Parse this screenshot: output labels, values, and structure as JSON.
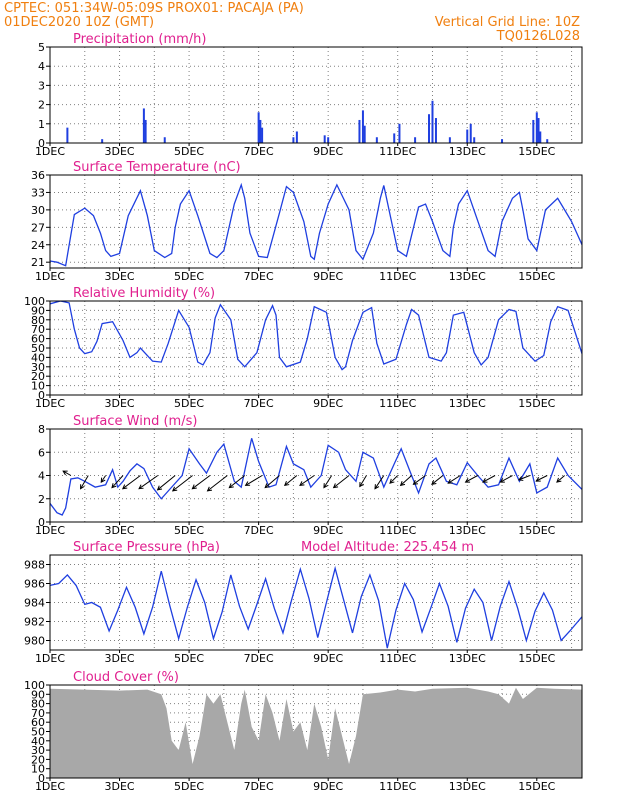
{
  "header": {
    "line1": "CPTEC:   051:34W-05:09S   PROX01: PACAJA (PA)",
    "line2": "01DEC2020 10Z (GMT)",
    "grid_note": "Vertical Grid Line: 10Z",
    "code": "TQ0126L028"
  },
  "colors": {
    "header": "#f07f0f",
    "title": "#e0208f",
    "series": "#1f3fe0",
    "cloud": "#a8a8a8",
    "arrow": "#000000"
  },
  "x_axis": {
    "labels": [
      "1DEC",
      "3DEC",
      "5DEC",
      "7DEC",
      "9DEC",
      "11DEC",
      "13DEC",
      "15DEC"
    ],
    "label_days": [
      1,
      3,
      5,
      7,
      9,
      11,
      13,
      15
    ],
    "range_days": [
      1,
      16.3
    ],
    "grid_days": [
      2,
      3,
      4,
      5,
      6,
      7,
      8,
      9,
      10,
      11,
      12,
      13,
      14,
      15,
      16
    ]
  },
  "chart_data": [
    {
      "id": "precip",
      "type": "bar",
      "title": "Precipitation (mm/h)",
      "ylim": [
        0,
        5
      ],
      "yticks": [
        "0",
        "1",
        "2",
        "3",
        "4",
        "5"
      ],
      "x": [
        1.5,
        2.5,
        3.7,
        3.75,
        4.3,
        7.0,
        7.05,
        7.1,
        8.0,
        8.1,
        8.9,
        9.0,
        9.9,
        10.0,
        10.05,
        10.4,
        10.9,
        11.05,
        11.5,
        11.9,
        12.0,
        12.1,
        12.5,
        13.0,
        13.1,
        13.2,
        14.0,
        14.9,
        15.0,
        15.05,
        15.1,
        15.3
      ],
      "values": [
        0.8,
        0.2,
        1.8,
        1.2,
        0.3,
        1.6,
        1.2,
        0.8,
        0.3,
        0.6,
        0.4,
        0.3,
        1.2,
        1.7,
        0.9,
        0.3,
        0.5,
        1.0,
        0.3,
        1.5,
        2.2,
        1.3,
        0.3,
        0.7,
        1.0,
        0.3,
        0.2,
        1.2,
        1.6,
        1.3,
        0.6,
        0.2
      ]
    },
    {
      "id": "temp",
      "type": "line",
      "title": "Surface Temperature (nC)",
      "ylim": [
        20,
        36
      ],
      "yticks": [
        "21",
        "24",
        "27",
        "30",
        "33",
        "36"
      ],
      "x": [
        1,
        1.2,
        1.45,
        1.7,
        2.0,
        2.25,
        2.45,
        2.6,
        2.75,
        3.0,
        3.25,
        3.6,
        3.8,
        4.0,
        4.3,
        4.5,
        4.6,
        4.75,
        5.0,
        5.25,
        5.6,
        5.8,
        6.0,
        6.3,
        6.5,
        6.6,
        6.75,
        7.0,
        7.25,
        7.6,
        7.8,
        8.0,
        8.3,
        8.5,
        8.6,
        8.75,
        9.0,
        9.25,
        9.6,
        9.8,
        10.0,
        10.3,
        10.5,
        10.6,
        10.75,
        11.0,
        11.25,
        11.6,
        11.8,
        12.0,
        12.3,
        12.5,
        12.6,
        12.75,
        13.0,
        13.25,
        13.6,
        13.8,
        14.0,
        14.3,
        14.5,
        14.6,
        14.75,
        15.0,
        15.25,
        15.6,
        15.8,
        16.0,
        16.3
      ],
      "values": [
        21.2,
        21.0,
        20.4,
        29.2,
        30.3,
        29.0,
        26.0,
        23.0,
        22.0,
        22.5,
        29.0,
        33.3,
        29.0,
        23.0,
        21.8,
        22.5,
        27.0,
        31.0,
        33.3,
        29.0,
        22.5,
        21.8,
        23.0,
        31.0,
        34.3,
        32.0,
        26.0,
        22.0,
        21.8,
        29.5,
        34.0,
        33.0,
        28.0,
        22.0,
        21.5,
        26.0,
        31.0,
        34.3,
        30.0,
        23.0,
        21.5,
        26.0,
        32.0,
        34.2,
        30.0,
        23.0,
        22.0,
        30.5,
        31.0,
        28.0,
        23.0,
        22.0,
        27.0,
        31.0,
        33.3,
        29.0,
        23.0,
        22.0,
        28.0,
        32.0,
        33.0,
        30.0,
        25.0,
        23.0,
        30.0,
        32.0,
        30.0,
        28.0,
        24.0
      ]
    },
    {
      "id": "rh",
      "type": "line",
      "title": "Relative Humidity (%)",
      "ylim": [
        0,
        100
      ],
      "yticks": [
        "0",
        "10",
        "20",
        "30",
        "40",
        "50",
        "60",
        "70",
        "80",
        "90",
        "100"
      ],
      "x": [
        1.0,
        1.3,
        1.55,
        1.7,
        1.85,
        2.0,
        2.2,
        2.35,
        2.5,
        2.8,
        3.1,
        3.3,
        3.5,
        3.6,
        3.75,
        3.95,
        4.2,
        4.4,
        4.7,
        5.0,
        5.25,
        5.4,
        5.6,
        5.75,
        5.9,
        6.2,
        6.4,
        6.6,
        6.95,
        7.2,
        7.4,
        7.5,
        7.6,
        7.8,
        8.2,
        8.4,
        8.6,
        8.95,
        9.2,
        9.4,
        9.5,
        9.7,
        10.0,
        10.25,
        10.4,
        10.6,
        10.95,
        11.25,
        11.4,
        11.6,
        11.9,
        12.25,
        12.4,
        12.6,
        12.9,
        13.2,
        13.4,
        13.6,
        13.9,
        14.2,
        14.4,
        14.6,
        14.95,
        15.2,
        15.4,
        15.6,
        15.9,
        16.3
      ],
      "values": [
        97,
        100,
        98,
        70,
        50,
        44,
        46,
        57,
        76,
        78,
        58,
        40,
        45,
        50,
        44,
        36,
        35,
        55,
        90,
        72,
        35,
        32,
        45,
        82,
        96,
        80,
        38,
        30,
        45,
        80,
        95,
        85,
        40,
        30,
        35,
        60,
        94,
        88,
        40,
        27,
        30,
        58,
        88,
        93,
        55,
        33,
        38,
        75,
        91,
        85,
        40,
        36,
        45,
        85,
        88,
        45,
        32,
        40,
        80,
        91,
        89,
        50,
        36,
        42,
        78,
        94,
        90,
        44
      ]
    },
    {
      "id": "wind",
      "type": "line",
      "title": "Surface Wind (m/s)",
      "ylim": [
        0,
        8
      ],
      "yticks": [
        "0",
        "2",
        "4",
        "6",
        "8"
      ],
      "x": [
        1.0,
        1.2,
        1.35,
        1.45,
        1.6,
        1.8,
        2.0,
        2.3,
        2.6,
        2.8,
        2.95,
        3.1,
        3.3,
        3.5,
        3.7,
        3.95,
        4.2,
        4.5,
        4.8,
        5.0,
        5.3,
        5.5,
        5.8,
        6.0,
        6.3,
        6.5,
        6.8,
        7.0,
        7.3,
        7.5,
        7.8,
        8.0,
        8.3,
        8.5,
        8.8,
        9.0,
        9.3,
        9.5,
        9.8,
        10.0,
        10.3,
        10.6,
        10.9,
        11.1,
        11.4,
        11.6,
        11.9,
        12.1,
        12.4,
        12.7,
        13.0,
        13.3,
        13.6,
        13.9,
        14.2,
        14.5,
        14.8,
        15.0,
        15.3,
        15.6,
        15.9,
        16.3
      ],
      "values": [
        1.6,
        0.8,
        0.6,
        1.2,
        3.7,
        3.8,
        3.5,
        3.0,
        3.2,
        4.5,
        3.0,
        3.5,
        4.4,
        5.0,
        4.6,
        3.0,
        2.0,
        3.0,
        4.0,
        6.3,
        5.0,
        4.2,
        6.0,
        6.7,
        3.5,
        3.0,
        7.2,
        5.2,
        3.0,
        3.2,
        6.5,
        5.0,
        4.5,
        3.0,
        4.0,
        6.6,
        6.0,
        4.5,
        3.5,
        6.0,
        5.5,
        3.0,
        5.0,
        6.3,
        4.0,
        2.5,
        5.0,
        5.5,
        3.5,
        3.2,
        5.1,
        4.0,
        3.0,
        3.2,
        5.5,
        3.5,
        5.0,
        2.5,
        3.0,
        5.5,
        4.0,
        2.8
      ],
      "arrows": [
        {
          "x": 1.6,
          "u": -0.35,
          "v": 0.2
        },
        {
          "x": 2.1,
          "u": -0.35,
          "v": -0.6
        },
        {
          "x": 2.6,
          "u": -0.2,
          "v": -0.3
        },
        {
          "x": 3.1,
          "u": -0.5,
          "v": -0.55
        },
        {
          "x": 3.6,
          "u": -0.8,
          "v": -0.6
        },
        {
          "x": 4.1,
          "u": -0.85,
          "v": -0.6
        },
        {
          "x": 4.6,
          "u": -0.8,
          "v": -0.65
        },
        {
          "x": 5.1,
          "u": -0.9,
          "v": -0.7
        },
        {
          "x": 5.6,
          "u": -0.8,
          "v": -0.6
        },
        {
          "x": 6.1,
          "u": -0.9,
          "v": -0.7
        },
        {
          "x": 6.6,
          "u": -0.7,
          "v": -0.55
        },
        {
          "x": 7.1,
          "u": -0.75,
          "v": -0.45
        },
        {
          "x": 7.6,
          "u": -0.65,
          "v": -0.55
        },
        {
          "x": 8.1,
          "u": -0.55,
          "v": -0.45
        },
        {
          "x": 8.6,
          "u": -0.65,
          "v": -0.45
        },
        {
          "x": 9.1,
          "u": -0.35,
          "v": -0.55
        },
        {
          "x": 9.6,
          "u": -0.7,
          "v": -0.55
        },
        {
          "x": 10.1,
          "u": -0.3,
          "v": -0.5
        },
        {
          "x": 10.6,
          "u": -0.4,
          "v": -0.6
        },
        {
          "x": 11.0,
          "u": -0.35,
          "v": -0.35
        },
        {
          "x": 11.4,
          "u": -0.5,
          "v": -0.45
        },
        {
          "x": 11.8,
          "u": -0.55,
          "v": -0.4
        },
        {
          "x": 12.3,
          "u": -0.5,
          "v": -0.4
        },
        {
          "x": 12.8,
          "u": -0.55,
          "v": -0.35
        },
        {
          "x": 13.3,
          "u": -0.55,
          "v": -0.3
        },
        {
          "x": 13.8,
          "u": -0.55,
          "v": -0.3
        },
        {
          "x": 14.3,
          "u": -0.55,
          "v": -0.3
        },
        {
          "x": 14.8,
          "u": -0.5,
          "v": -0.2
        },
        {
          "x": 15.3,
          "u": -0.5,
          "v": -0.25
        },
        {
          "x": 15.8,
          "u": -0.35,
          "v": -0.3
        }
      ]
    },
    {
      "id": "pressure",
      "type": "line",
      "title": "Surface Pressure (hPa)",
      "annotation": "Model Altitude: 225.454 m",
      "ylim": [
        979,
        989
      ],
      "yticks": [
        "980",
        "982",
        "984",
        "986",
        "988"
      ],
      "x": [
        1.0,
        1.25,
        1.5,
        1.75,
        2.0,
        2.2,
        2.45,
        2.7,
        2.95,
        3.2,
        3.45,
        3.7,
        3.95,
        4.2,
        4.45,
        4.7,
        4.95,
        5.2,
        5.45,
        5.7,
        5.95,
        6.2,
        6.45,
        6.7,
        6.95,
        7.2,
        7.45,
        7.7,
        7.95,
        8.2,
        8.45,
        8.7,
        8.95,
        9.2,
        9.45,
        9.7,
        9.95,
        10.2,
        10.45,
        10.7,
        10.95,
        11.2,
        11.45,
        11.7,
        11.95,
        12.2,
        12.45,
        12.7,
        12.95,
        13.2,
        13.45,
        13.7,
        13.95,
        14.2,
        14.45,
        14.7,
        14.95,
        15.2,
        15.45,
        15.7,
        15.95,
        16.3
      ],
      "values": [
        985.8,
        986.0,
        986.9,
        985.8,
        983.8,
        984.0,
        983.5,
        981.0,
        983.2,
        985.6,
        983.5,
        980.7,
        983.5,
        987.3,
        983.6,
        980.2,
        983.5,
        986.4,
        984.0,
        980.2,
        983.0,
        986.9,
        983.6,
        981.2,
        983.8,
        986.5,
        983.4,
        980.8,
        984.3,
        987.5,
        984.4,
        980.3,
        984.0,
        987.6,
        984.2,
        980.8,
        984.6,
        986.9,
        984.2,
        979.2,
        983.2,
        986.0,
        984.3,
        980.9,
        983.4,
        986.0,
        983.6,
        979.8,
        983.4,
        985.4,
        984.0,
        980.0,
        983.6,
        986.2,
        983.4,
        980.0,
        983.1,
        985.0,
        983.2,
        980.0,
        981.0,
        982.5
      ]
    },
    {
      "id": "cloud",
      "type": "area",
      "title": "Cloud Cover (%)",
      "ylim": [
        0,
        100
      ],
      "yticks": [
        "0",
        "10",
        "20",
        "30",
        "40",
        "50",
        "60",
        "70",
        "80",
        "90",
        "100"
      ],
      "x": [
        1.0,
        2.0,
        3.0,
        3.8,
        4.2,
        4.35,
        4.5,
        4.7,
        4.9,
        5.1,
        5.3,
        5.5,
        5.7,
        5.9,
        6.1,
        6.3,
        6.5,
        6.6,
        6.8,
        7.0,
        7.2,
        7.4,
        7.6,
        7.8,
        8.0,
        8.2,
        8.4,
        8.6,
        8.8,
        9.0,
        9.2,
        9.4,
        9.6,
        9.8,
        10.0,
        10.5,
        11.0,
        11.5,
        12.0,
        13.0,
        13.3,
        13.6,
        13.9,
        14.2,
        14.4,
        14.6,
        15.0,
        15.5,
        16.3
      ],
      "values": [
        96,
        95,
        94,
        95,
        90,
        75,
        40,
        30,
        60,
        15,
        45,
        90,
        80,
        90,
        60,
        30,
        80,
        95,
        55,
        40,
        90,
        70,
        40,
        85,
        50,
        60,
        30,
        80,
        55,
        20,
        75,
        45,
        15,
        45,
        90,
        92,
        95,
        93,
        96,
        97,
        95,
        93,
        90,
        80,
        97,
        85,
        97,
        96,
        95
      ]
    }
  ]
}
